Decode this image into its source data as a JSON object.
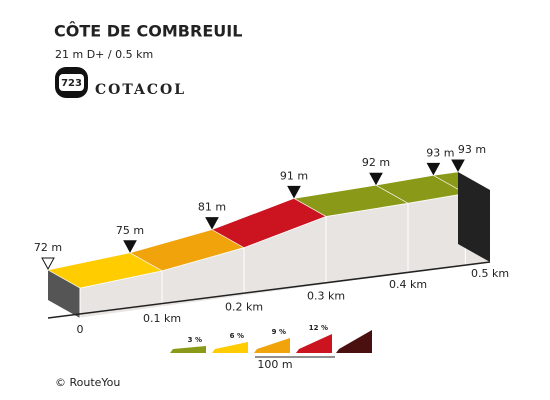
{
  "chart_data": {
    "type": "climb-profile",
    "title": "CÔTE DE COMBREUIL",
    "subtitle": "21 m D+ / 0.5 km",
    "badge": "723",
    "brand": "COTACOL",
    "x": [
      0,
      0.1,
      0.2,
      0.3,
      0.4,
      0.47,
      0.5
    ],
    "values": [
      72,
      75,
      81,
      91,
      92,
      93,
      93
    ],
    "value_labels": [
      "72 m",
      "75 m",
      "81 m",
      "91 m",
      "92 m",
      "93 m",
      "93 m"
    ],
    "segment_colors": [
      "#ffcc00",
      "#f0a30a",
      "#cc1421",
      "#8a9a18",
      "#8a9a18",
      "#8a9a18"
    ],
    "xlim": [
      0,
      0.5
    ],
    "ylim": [
      57,
      93
    ],
    "xticks": [
      {
        "value": 0,
        "label": "0"
      },
      {
        "value": 0.1,
        "label": "0.1 km"
      },
      {
        "value": 0.2,
        "label": "0.2 km"
      },
      {
        "value": 0.3,
        "label": "0.3 km"
      },
      {
        "value": 0.4,
        "label": "0.4 km"
      },
      {
        "value": 0.5,
        "label": "0.5 km"
      }
    ],
    "legend": {
      "items": [
        {
          "label": "3 %",
          "color": "#8a9a18"
        },
        {
          "label": "6 %",
          "color": "#ffcc00"
        },
        {
          "label": "9 %",
          "color": "#f0a30a"
        },
        {
          "label": "12 %",
          "color": "#cc1421"
        },
        {
          "label": "",
          "color": "#4a1010"
        }
      ],
      "scale_label": "100 m"
    },
    "credit": "© RouteYou"
  }
}
